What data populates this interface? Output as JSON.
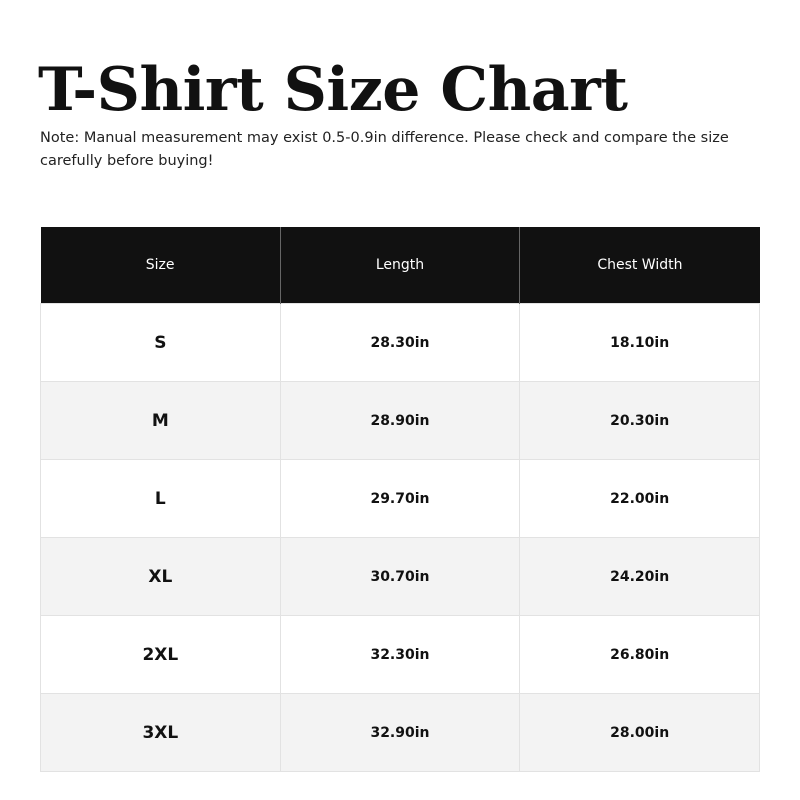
{
  "title": "T-Shirt Size Chart",
  "note": "Note: Manual measurement may exist 0.5-0.9in difference. Please check and compare the size carefully before buying!",
  "table": {
    "headers": [
      "Size",
      "Length",
      "Chest Width"
    ],
    "rows": [
      [
        "S",
        "28.30in",
        "18.10in"
      ],
      [
        "M",
        "28.90in",
        "20.30in"
      ],
      [
        "L",
        "29.70in",
        "22.00in"
      ],
      [
        "XL",
        "30.70in",
        "24.20in"
      ],
      [
        "2XL",
        "32.30in",
        "26.80in"
      ],
      [
        "3XL",
        "32.90in",
        "28.00in"
      ]
    ]
  },
  "colors": {
    "header_bg": "#111111",
    "stripe_bg": "#f3f3f3"
  }
}
